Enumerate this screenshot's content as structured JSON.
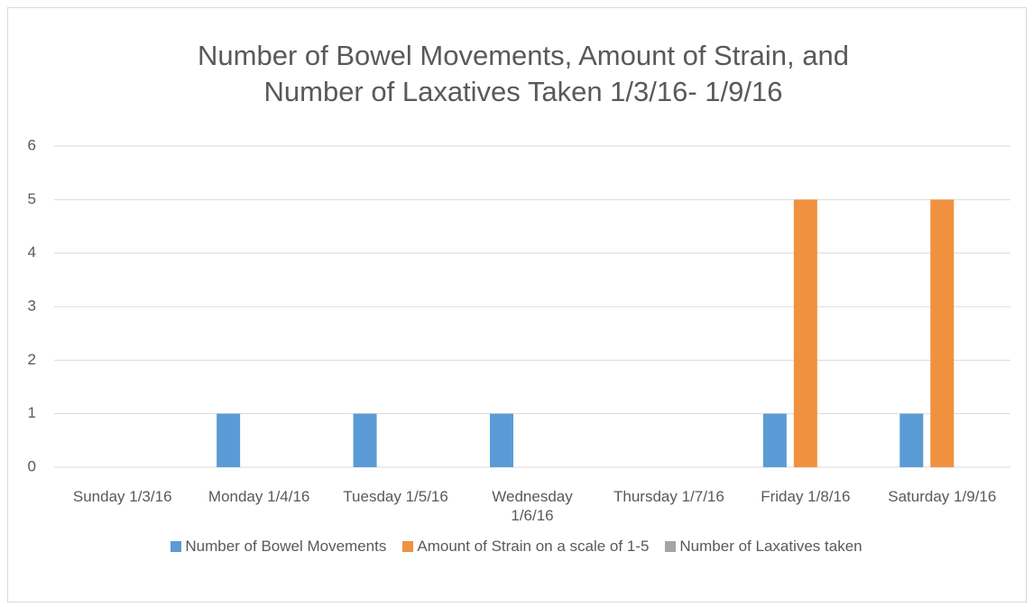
{
  "chart_data": {
    "type": "bar",
    "title": "Number of Bowel Movements, Amount of Strain, and Number of Laxatives Taken 1/3/16- 1/9/16",
    "categories": [
      "Sunday 1/3/16",
      "Monday 1/4/16",
      "Tuesday 1/5/16",
      "Wednesday 1/6/16",
      "Thursday 1/7/16",
      "Friday 1/8/16",
      "Saturday 1/9/16"
    ],
    "series": [
      {
        "name": "Number of Bowel Movements",
        "color": "#5b9bd5",
        "values": [
          0,
          1,
          1,
          1,
          0,
          1,
          1
        ]
      },
      {
        "name": "Amount of Strain on a scale of 1-5",
        "color": "#f0913f",
        "values": [
          0,
          0,
          0,
          0,
          0,
          5,
          5
        ]
      },
      {
        "name": "Number of Laxatives taken",
        "color": "#a5a5a5",
        "values": [
          0,
          0,
          0,
          0,
          0,
          0,
          0
        ]
      }
    ],
    "ylim": [
      0,
      6
    ],
    "yticks": [
      0,
      1,
      2,
      3,
      4,
      5,
      6
    ],
    "grid": true,
    "legend": "bottom"
  }
}
